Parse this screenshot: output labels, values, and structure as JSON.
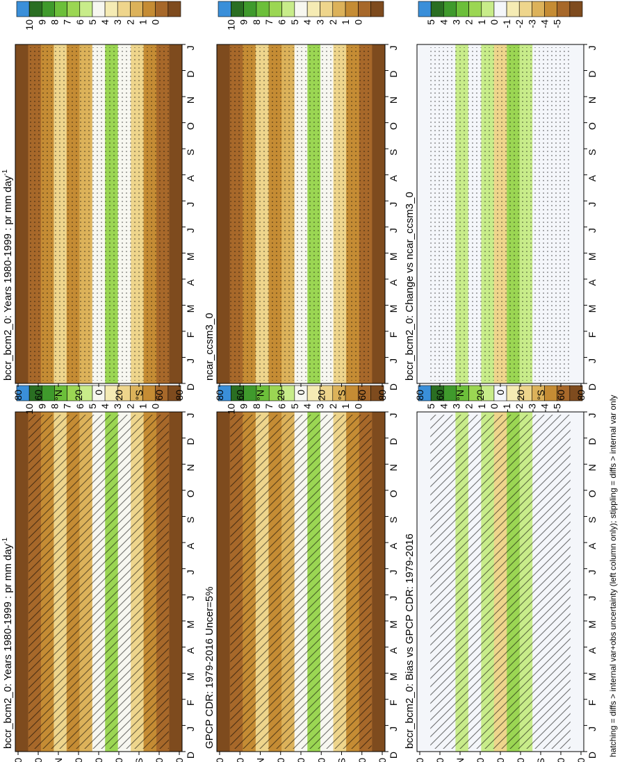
{
  "chart_data": {
    "type": "heatmap",
    "description_units": "precipitation (mm/day), zonal mean by month and latitude",
    "orientation": "rotated 90 degrees counter-clockwise",
    "month_ticks": [
      "D",
      "J",
      "F",
      "M",
      "A",
      "M",
      "J",
      "J",
      "A",
      "S",
      "O",
      "N",
      "D",
      "J"
    ],
    "lat_ticks": [
      "80",
      "60",
      "°N",
      "20",
      "0",
      "20",
      "°S",
      "60",
      "80"
    ],
    "footnote": "hatching = diffs > internal var+obs uncertainty (left column only); stippling = diffs > internal var only",
    "panels": [
      {
        "id": "model-left",
        "title": "bccr_bcm2_0: Years 1980-1999 : pr mm day",
        "title_sup": "-1",
        "colorbar_levels": [
          "10",
          "9",
          "8",
          "7",
          "6",
          "5",
          "4",
          "3",
          "2",
          "1",
          "0"
        ],
        "overlay": "hatch",
        "kind": "abs"
      },
      {
        "id": "obs",
        "title": "GPCP CDR: 1979-2016 Uncer=5%",
        "title_sup": "",
        "colorbar_levels": [
          "10",
          "9",
          "8",
          "7",
          "6",
          "5",
          "4",
          "3",
          "2",
          "1",
          "0"
        ],
        "overlay": "hatch",
        "kind": "abs"
      },
      {
        "id": "bias",
        "title": "bccr_bcm2_0: Bias vs GPCP CDR: 1979-2016",
        "title_sup": "",
        "colorbar_levels": [
          "5",
          "4",
          "3",
          "2",
          "1",
          "0",
          "-1",
          "-2",
          "-3",
          "-4",
          "-5"
        ],
        "overlay": "hatch",
        "kind": "diff"
      },
      {
        "id": "model-right",
        "title": "bccr_bcm2_0: Years 1980-1999 : pr mm day",
        "title_sup": "-1",
        "colorbar_levels": [
          "10",
          "9",
          "8",
          "7",
          "6",
          "5",
          "4",
          "3",
          "2",
          "1",
          "0"
        ],
        "overlay": "stipple",
        "kind": "abs"
      },
      {
        "id": "other-model",
        "title": "ncar_ccsm3_0",
        "title_sup": "",
        "colorbar_levels": [
          "10",
          "9",
          "8",
          "7",
          "6",
          "5",
          "4",
          "3",
          "2",
          "1",
          "0"
        ],
        "overlay": "stipple",
        "kind": "abs"
      },
      {
        "id": "change",
        "title": "bccr_bcm2_0: Change vs ncar_ccsm3_0",
        "title_sup": "",
        "colorbar_levels": [
          "5",
          "4",
          "3",
          "2",
          "1",
          "0",
          "-1",
          "-2",
          "-3",
          "-4",
          "-5"
        ],
        "overlay": "stipple",
        "kind": "diff"
      }
    ],
    "colormap": [
      "#3a8fd9",
      "#2a6e22",
      "#3f9a2c",
      "#6cbf3a",
      "#9bd653",
      "#c8ec8a",
      "#f7f7f0",
      "#f5ebb4",
      "#eed58c",
      "#dcb25a",
      "#c58c34",
      "#a7682a",
      "#7e4b1e"
    ]
  }
}
